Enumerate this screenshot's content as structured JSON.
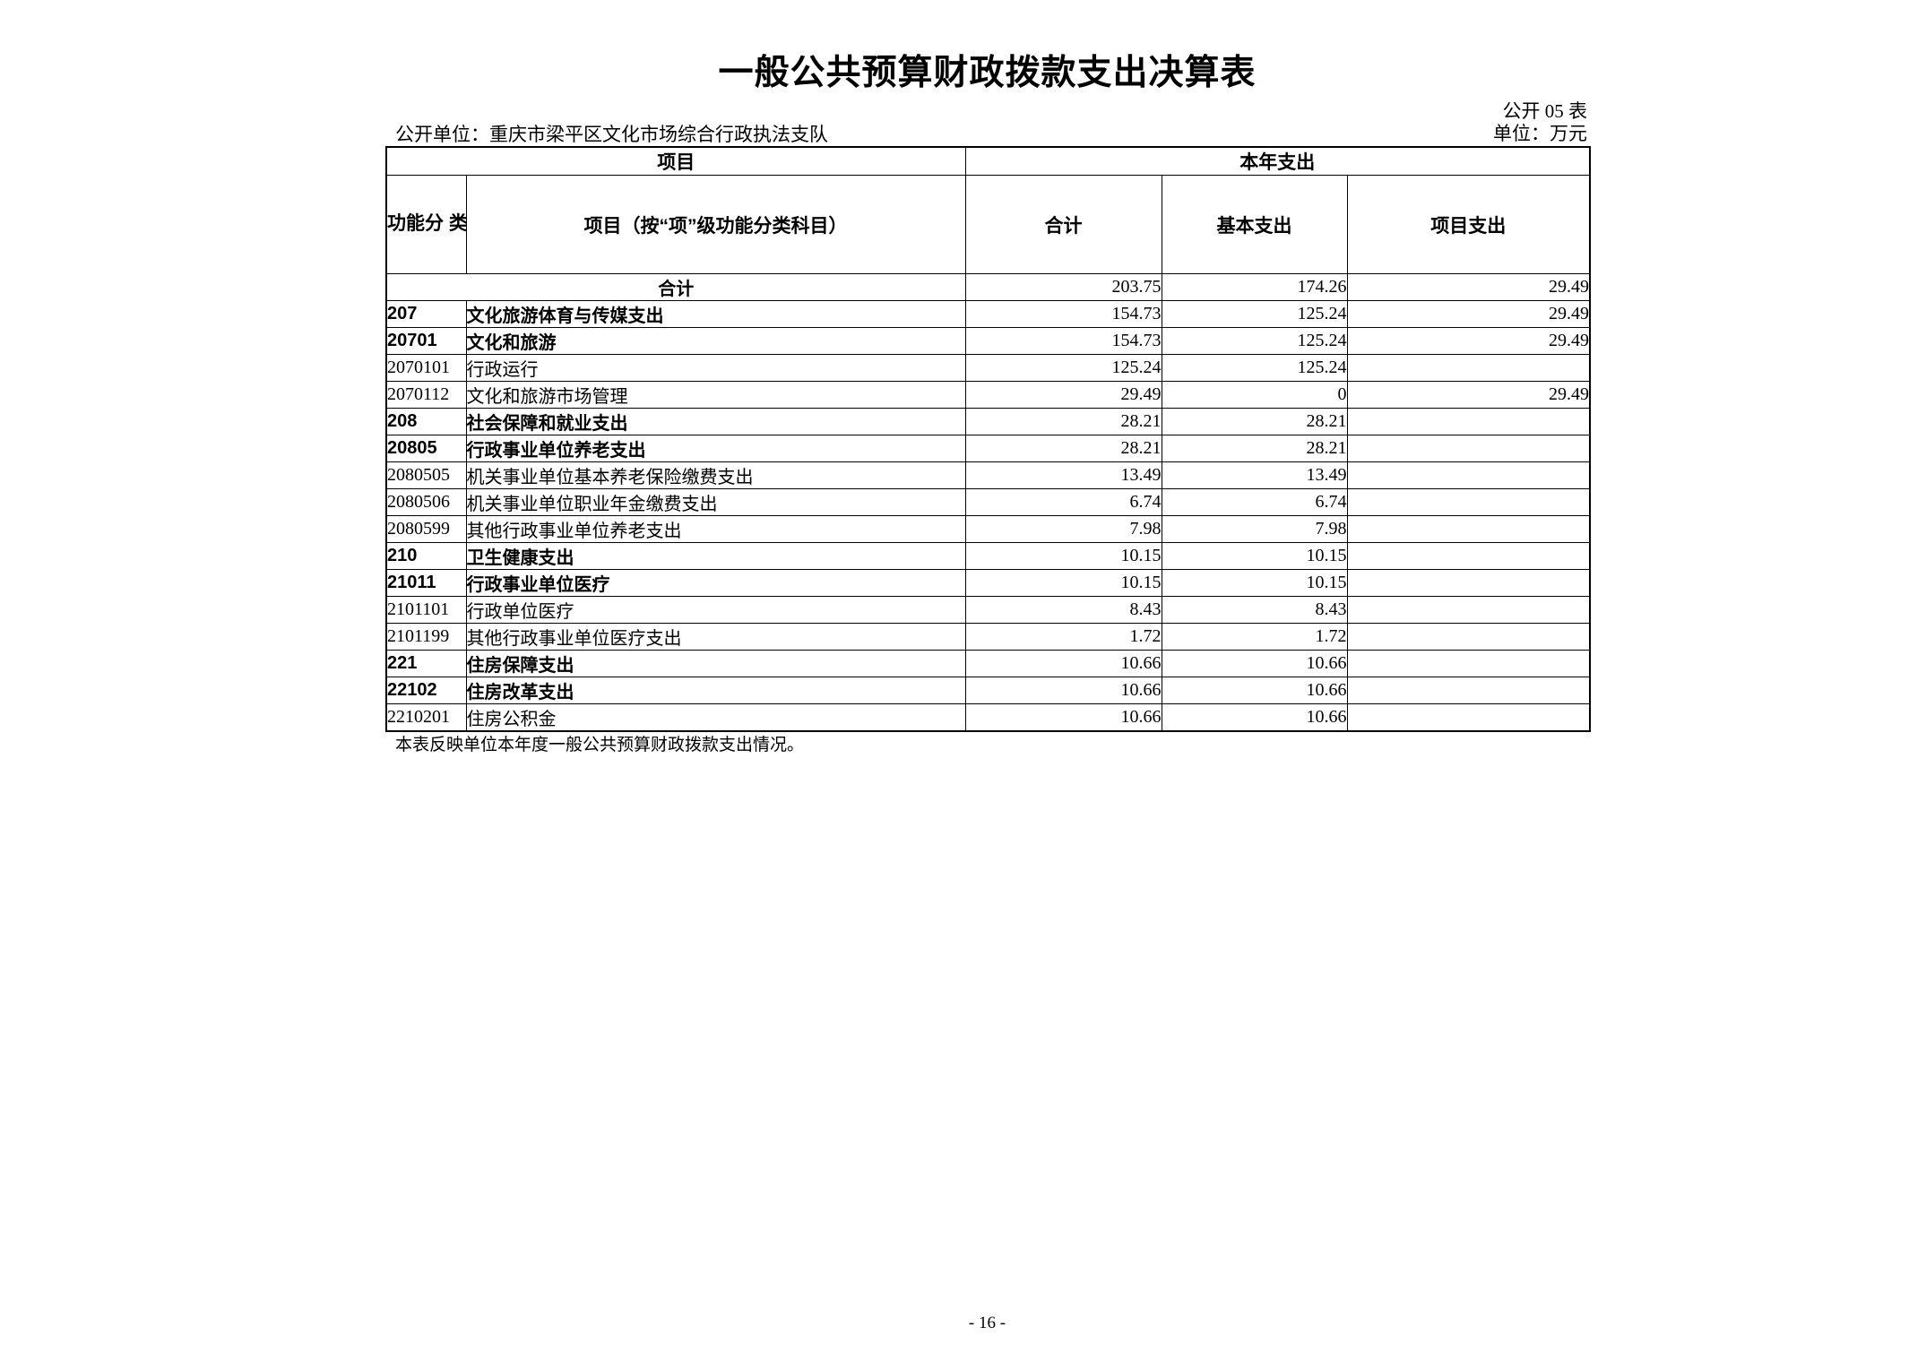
{
  "page": {
    "title": "一般公共预算财政拨款支出决算表",
    "table_code": "公开 05 表",
    "org_label": "公开单位：重庆市梁平区文化市场综合行政执法支队",
    "unit_label": "单位：万元",
    "footnote": "本表反映单位本年度一般公共预算财政拨款支出情况。",
    "page_number": "- 16 -"
  },
  "table": {
    "header": {
      "group_item": "项目",
      "group_year": "本年支出",
      "col_code": "功能分\n类科目\n编码",
      "col_item": "项目（按“项”级功能分类科目）",
      "col_total": "合计",
      "col_basic": "基本支出",
      "col_project": "项目支出"
    },
    "rows": [
      {
        "merged": true,
        "bold": true,
        "code": "",
        "name": "合计",
        "total": "203.75",
        "basic": "174.26",
        "project": "29.49"
      },
      {
        "merged": false,
        "bold": true,
        "code": "207",
        "name": "文化旅游体育与传媒支出",
        "total": "154.73",
        "basic": "125.24",
        "project": "29.49"
      },
      {
        "merged": false,
        "bold": true,
        "code": "20701",
        "name": "文化和旅游",
        "total": "154.73",
        "basic": "125.24",
        "project": "29.49"
      },
      {
        "merged": false,
        "bold": false,
        "code": "2070101",
        "name": "行政运行",
        "total": "125.24",
        "basic": "125.24",
        "project": ""
      },
      {
        "merged": false,
        "bold": false,
        "code": "2070112",
        "name": "文化和旅游市场管理",
        "total": "29.49",
        "basic": "0",
        "project": "29.49"
      },
      {
        "merged": false,
        "bold": true,
        "code": "208",
        "name": "社会保障和就业支出",
        "total": "28.21",
        "basic": "28.21",
        "project": ""
      },
      {
        "merged": false,
        "bold": true,
        "code": "20805",
        "name": "行政事业单位养老支出",
        "total": "28.21",
        "basic": "28.21",
        "project": ""
      },
      {
        "merged": false,
        "bold": false,
        "code": "2080505",
        "name": "机关事业单位基本养老保险缴费支出",
        "total": "13.49",
        "basic": "13.49",
        "project": ""
      },
      {
        "merged": false,
        "bold": false,
        "code": "2080506",
        "name": "机关事业单位职业年金缴费支出",
        "total": "6.74",
        "basic": "6.74",
        "project": ""
      },
      {
        "merged": false,
        "bold": false,
        "code": "2080599",
        "name": "其他行政事业单位养老支出",
        "total": "7.98",
        "basic": "7.98",
        "project": ""
      },
      {
        "merged": false,
        "bold": true,
        "code": "210",
        "name": "卫生健康支出",
        "total": "10.15",
        "basic": "10.15",
        "project": ""
      },
      {
        "merged": false,
        "bold": true,
        "code": "21011",
        "name": "行政事业单位医疗",
        "total": "10.15",
        "basic": "10.15",
        "project": ""
      },
      {
        "merged": false,
        "bold": false,
        "code": "2101101",
        "name": "行政单位医疗",
        "total": "8.43",
        "basic": "8.43",
        "project": ""
      },
      {
        "merged": false,
        "bold": false,
        "code": "2101199",
        "name": "其他行政事业单位医疗支出",
        "total": "1.72",
        "basic": "1.72",
        "project": ""
      },
      {
        "merged": false,
        "bold": true,
        "code": "221",
        "name": "住房保障支出",
        "total": "10.66",
        "basic": "10.66",
        "project": ""
      },
      {
        "merged": false,
        "bold": true,
        "code": "22102",
        "name": "住房改革支出",
        "total": "10.66",
        "basic": "10.66",
        "project": ""
      },
      {
        "merged": false,
        "bold": false,
        "code": "2210201",
        "name": "住房公积金",
        "total": "10.66",
        "basic": "10.66",
        "project": ""
      }
    ]
  }
}
